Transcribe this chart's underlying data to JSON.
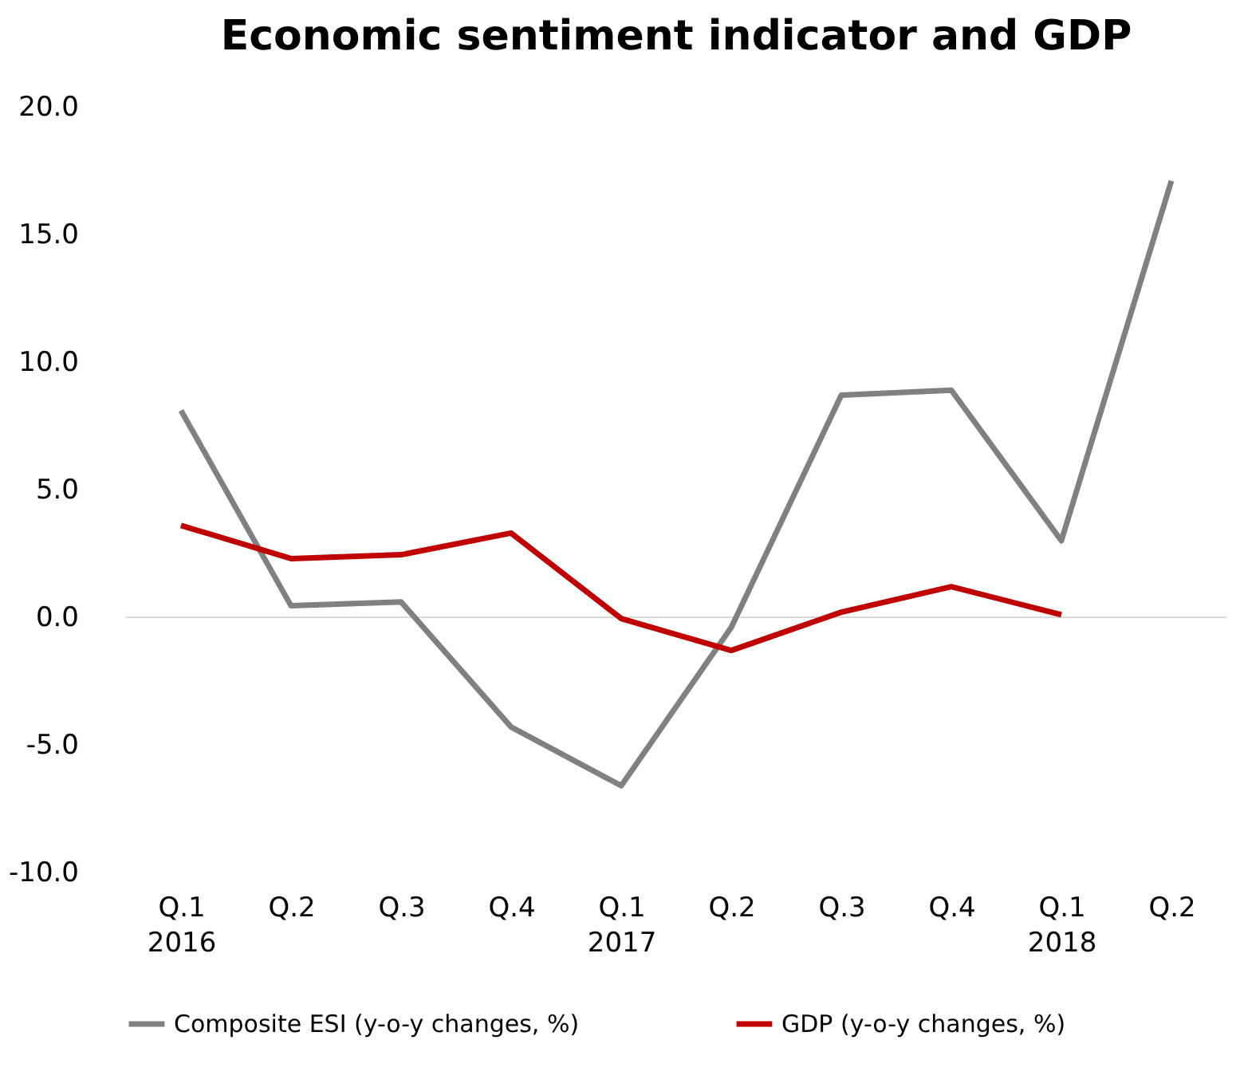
{
  "chart_data": {
    "type": "line",
    "title": "Economic sentiment indicator and GDP",
    "categories": [
      "Q.1\n2016",
      "Q.2",
      "Q.3",
      "Q.4",
      "Q.1\n2017",
      "Q.2",
      "Q.3",
      "Q.4",
      "Q.1\n2018",
      "Q.2"
    ],
    "series": [
      {
        "name": "Composite ESI (y-o-y changes, %)",
        "color": "#808080",
        "values": [
          8.1,
          0.45,
          0.6,
          -4.3,
          -6.6,
          -0.4,
          8.7,
          8.9,
          3.0,
          17.1
        ]
      },
      {
        "name": "GDP (y-o-y changes, %)",
        "color": "#c00000",
        "values": [
          3.6,
          2.3,
          2.45,
          3.3,
          -0.05,
          -1.3,
          0.2,
          1.2,
          0.1,
          null
        ]
      }
    ],
    "ylim": [
      -10,
      20
    ],
    "yticks": [
      {
        "value": -10,
        "label": "-10.0"
      },
      {
        "value": -5,
        "label": "-5.0"
      },
      {
        "value": 0,
        "label": "0.0"
      },
      {
        "value": 5,
        "label": "5.0"
      },
      {
        "value": 10,
        "label": "10.0"
      },
      {
        "value": 15,
        "label": "15.0"
      },
      {
        "value": 20,
        "label": "20.0"
      }
    ],
    "ref_lines": [
      {
        "axis": "y",
        "value": 0,
        "color": "#d9d9d9"
      }
    ],
    "grid": false,
    "legend": "bottom",
    "marker": "none",
    "line_style": "solid"
  }
}
